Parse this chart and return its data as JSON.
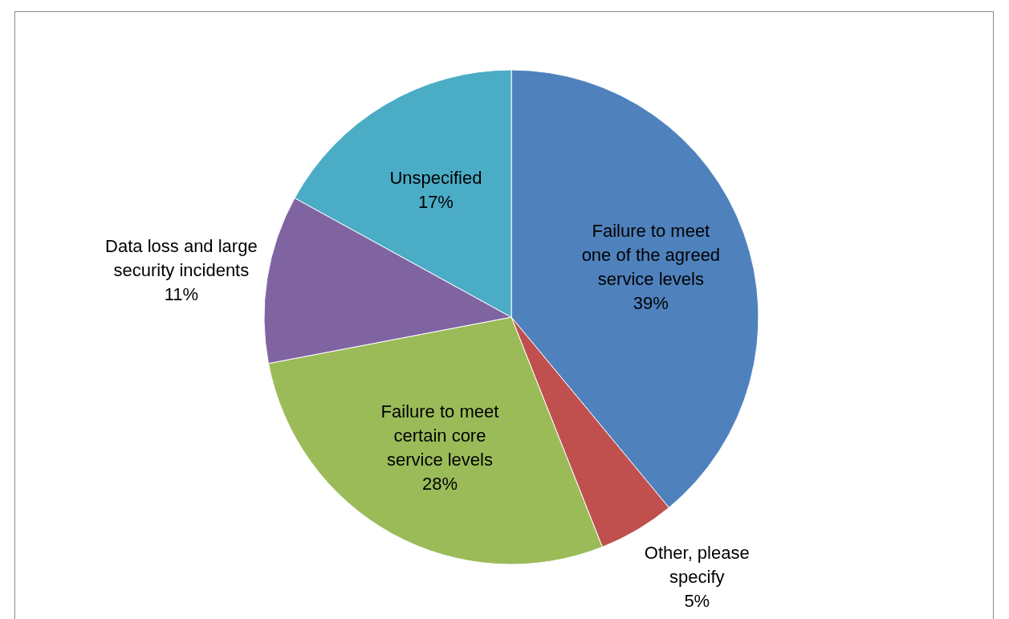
{
  "chart_data": {
    "type": "pie",
    "categories": [
      "Failure to meet one of the agreed service levels",
      "Other, please specify",
      "Failure to meet certain core service levels",
      "Data loss and large security incidents",
      "Unspecified"
    ],
    "values": [
      39,
      5,
      28,
      11,
      17
    ],
    "value_labels": [
      "39%",
      "5%",
      "28%",
      "11%",
      "17%"
    ],
    "colors": [
      "#4f81bd",
      "#c0504d",
      "#9bbb59",
      "#8064a2",
      "#4bacc6"
    ],
    "legend": false
  }
}
